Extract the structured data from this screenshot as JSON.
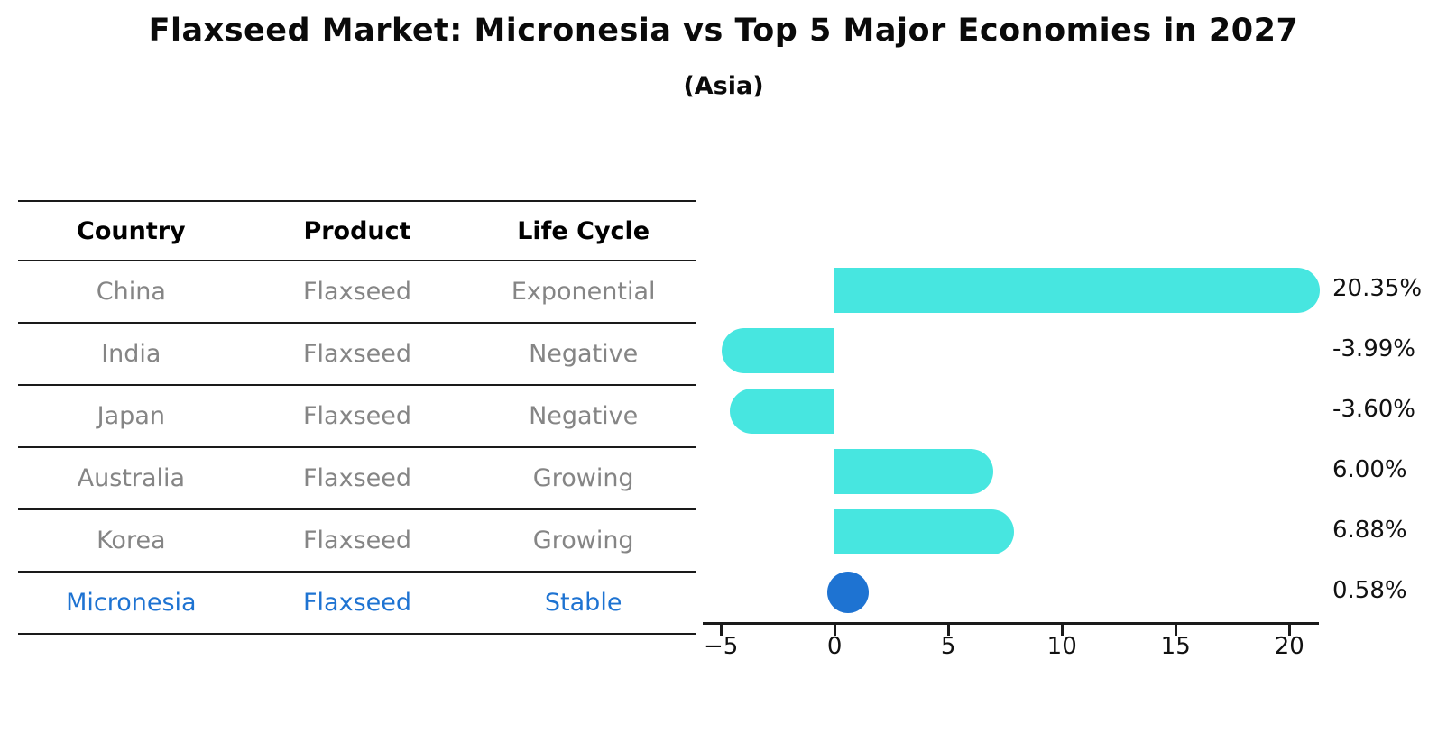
{
  "title": "Flaxseed Market: Micronesia vs Top 5 Major Economies in 2027",
  "subtitle": "(Asia)",
  "table": {
    "headers": [
      "Country",
      "Product",
      "Life Cycle"
    ],
    "rows": [
      {
        "country": "China",
        "product": "Flaxseed",
        "life_cycle": "Exponential",
        "highlight": false
      },
      {
        "country": "India",
        "product": "Flaxseed",
        "life_cycle": "Negative",
        "highlight": false
      },
      {
        "country": "Japan",
        "product": "Flaxseed",
        "life_cycle": "Negative",
        "highlight": false
      },
      {
        "country": "Australia",
        "product": "Flaxseed",
        "life_cycle": "Growing",
        "highlight": false
      },
      {
        "country": "Korea",
        "product": "Flaxseed",
        "life_cycle": "Growing",
        "highlight": false
      },
      {
        "country": "Micronesia",
        "product": "Flaxseed",
        "life_cycle": "Stable",
        "highlight": true
      }
    ]
  },
  "chart_data": {
    "type": "bar",
    "orientation": "horizontal",
    "title": "Flaxseed Market: Micronesia vs Top 5 Major Economies in 2027",
    "subtitle": "(Asia)",
    "categories": [
      "China",
      "India",
      "Japan",
      "Australia",
      "Korea",
      "Micronesia"
    ],
    "values": [
      20.35,
      -3.99,
      -3.6,
      6.0,
      6.88,
      0.58
    ],
    "value_labels": [
      "20.35%",
      "-3.99%",
      "-3.60%",
      "6.00%",
      "6.88%",
      "0.58%"
    ],
    "xlim": [
      -5.8,
      21.3
    ],
    "xticks": [
      -5,
      0,
      5,
      10,
      15,
      20
    ],
    "xtick_labels": [
      "−5",
      "0",
      "5",
      "10",
      "15",
      "20"
    ],
    "grid": false,
    "legend": "none",
    "bar_color": "#47e6e0",
    "highlight_index": 5,
    "highlight_marker": "circle",
    "highlight_color": "#1e73d2"
  },
  "colors": {
    "title_text": "#0a0a0a",
    "header_text": "#000000",
    "row_text": "#858585",
    "highlight_text": "#1e73d2",
    "value_label_text": "#111111",
    "rule_line": "#1a1a1a"
  }
}
